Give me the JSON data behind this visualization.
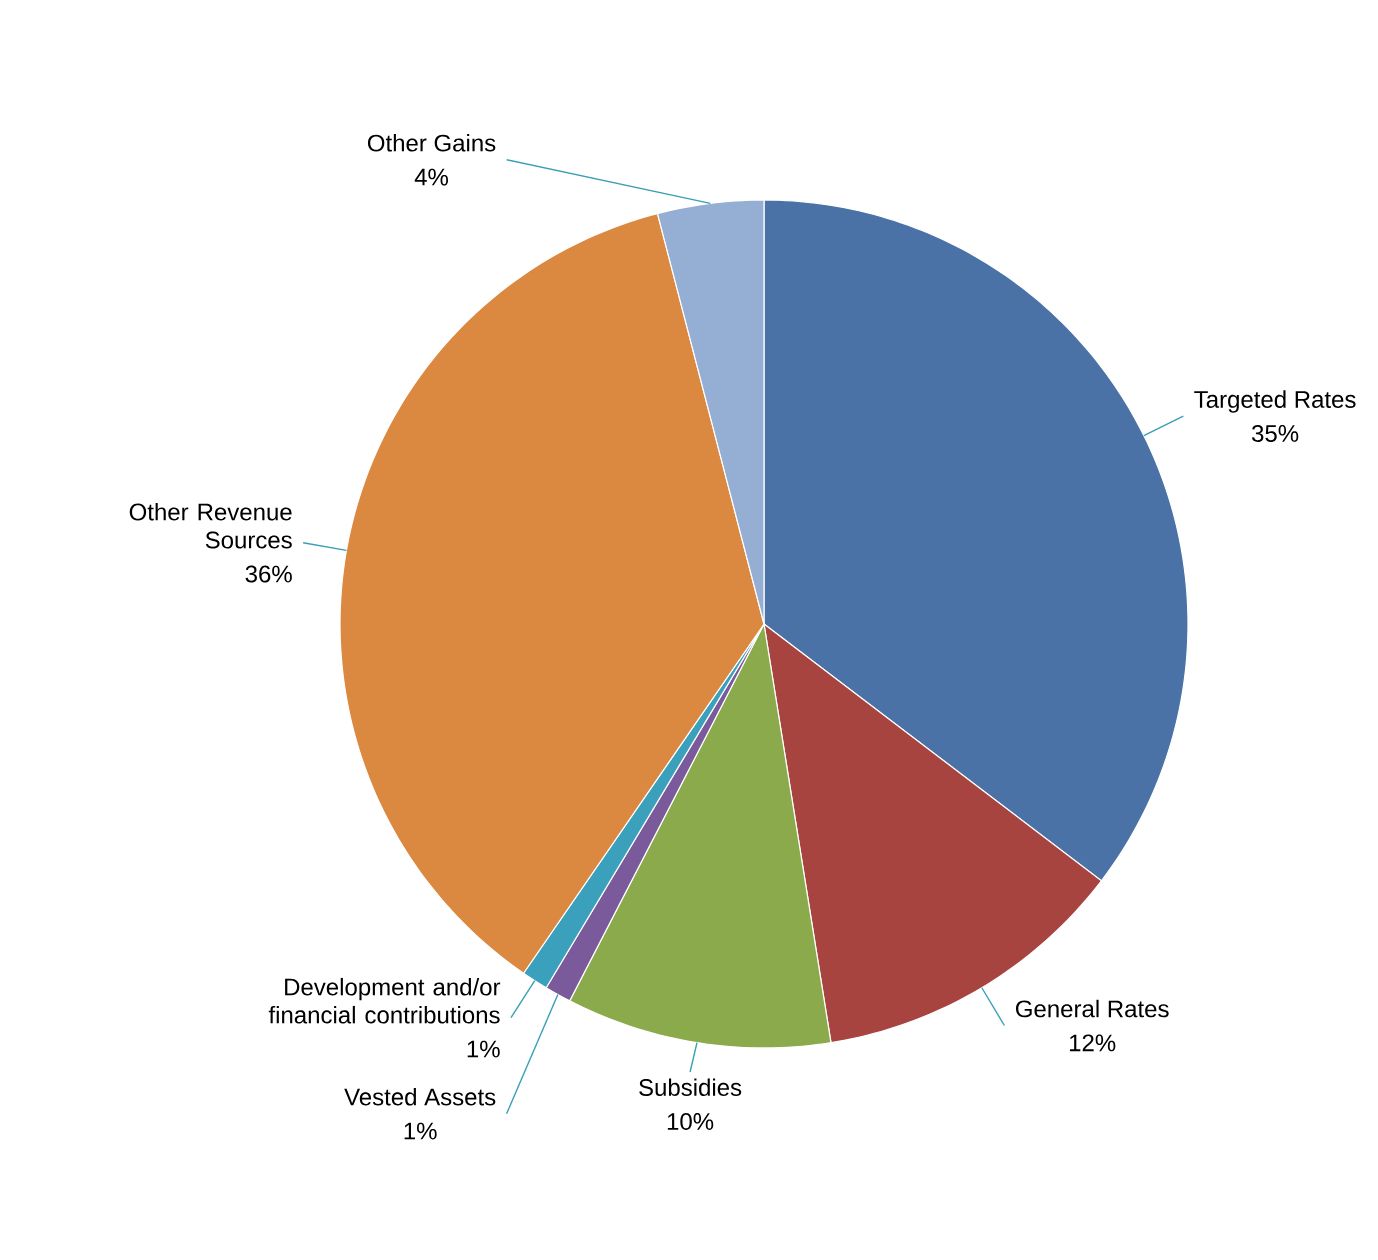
{
  "chart_data": {
    "type": "pie",
    "categories": [
      "Targeted Rates",
      "General Rates",
      "Subsidies",
      "Vested Assets",
      "Development and/or financial contributions",
      "Other Revenue Sources",
      "Other Gains"
    ],
    "values": [
      35,
      12,
      10,
      1,
      1,
      36,
      4
    ],
    "value_labels": [
      "35%",
      "12%",
      "10%",
      "1%",
      "1%",
      "36%",
      "4%"
    ],
    "colors": [
      "#4a72a6",
      "#a84440",
      "#8aaa4c",
      "#7a5a9a",
      "#3aa0bc",
      "#db8840",
      "#94aed4"
    ]
  }
}
